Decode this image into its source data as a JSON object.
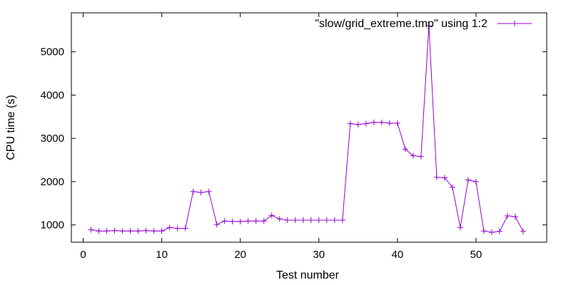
{
  "chart_data": {
    "type": "line",
    "xlabel": "Test number",
    "ylabel": "CPU time (s)",
    "xlim": [
      -1.5,
      59
    ],
    "ylim": [
      600,
      5900
    ],
    "xticks": [
      0,
      10,
      20,
      30,
      40,
      50
    ],
    "yticks": [
      1000,
      2000,
      3000,
      4000,
      5000
    ],
    "grid": false,
    "legend_position": "top-right",
    "series": [
      {
        "name": "\"slow/grid_extreme.tmp\" using 1:2",
        "color": "#9400d3",
        "marker": "plus",
        "x": [
          1,
          2,
          3,
          4,
          5,
          6,
          7,
          8,
          9,
          10,
          11,
          12,
          13,
          14,
          15,
          16,
          17,
          18,
          19,
          20,
          21,
          22,
          23,
          24,
          25,
          26,
          27,
          28,
          29,
          30,
          31,
          32,
          33,
          34,
          35,
          36,
          37,
          38,
          39,
          40,
          41,
          42,
          43,
          44,
          45,
          46,
          47,
          48,
          49,
          50,
          51,
          52,
          53,
          54,
          55,
          56
        ],
        "values": [
          890,
          860,
          860,
          870,
          860,
          860,
          860,
          870,
          860,
          860,
          940,
          920,
          920,
          1770,
          1750,
          1770,
          1010,
          1090,
          1080,
          1080,
          1090,
          1090,
          1090,
          1220,
          1140,
          1110,
          1110,
          1110,
          1110,
          1110,
          1110,
          1110,
          1110,
          3340,
          3320,
          3340,
          3370,
          3370,
          3350,
          3350,
          2750,
          2600,
          2580,
          5600,
          2100,
          2090,
          1870,
          940,
          2040,
          2000,
          860,
          830,
          850,
          1210,
          1190,
          850
        ]
      }
    ]
  }
}
